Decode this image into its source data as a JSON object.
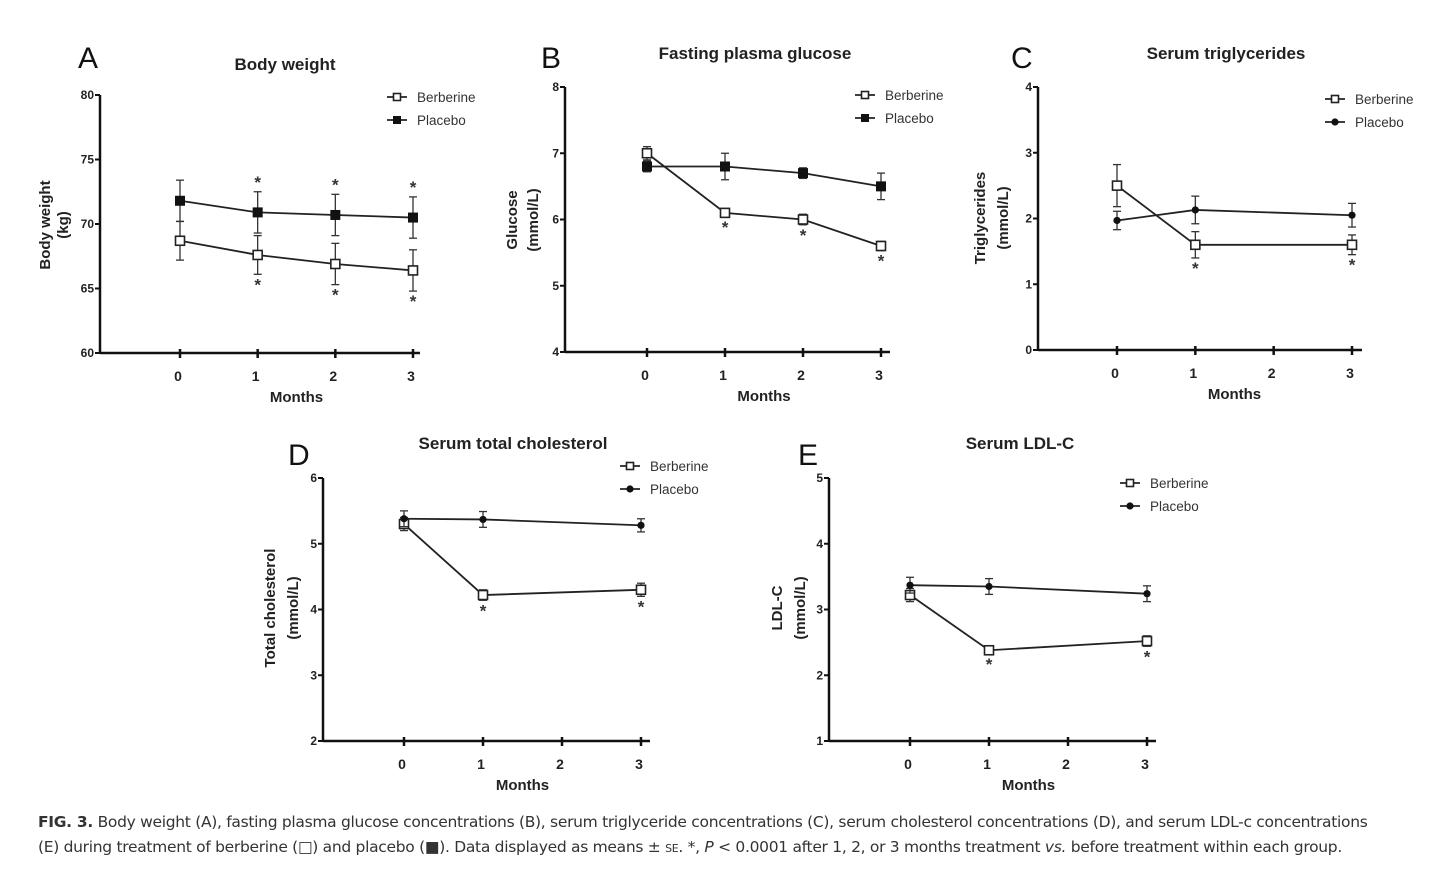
{
  "chart_data": [
    {
      "panel": "A",
      "type": "line",
      "title": "Body weight",
      "ylabel": [
        "Body weight",
        "(kg)"
      ],
      "xlabel": "Months",
      "ylim": [
        60,
        80
      ],
      "yticks": [
        "60",
        "65",
        "70",
        "75",
        "80"
      ],
      "x": [
        0,
        1,
        2,
        3
      ],
      "xticks": [
        "0",
        "1",
        "2",
        "3"
      ],
      "placebo_marker": "filled-square",
      "series": [
        {
          "name": "Berberine",
          "x": [
            0,
            1,
            2,
            3
          ],
          "values": [
            68.7,
            67.6,
            66.9,
            66.4
          ],
          "errors": [
            1.5,
            1.5,
            1.6,
            1.6
          ],
          "significant": [
            false,
            true,
            true,
            true
          ],
          "star_side": "below"
        },
        {
          "name": "Placebo",
          "x": [
            0,
            1,
            2,
            3
          ],
          "values": [
            71.8,
            70.9,
            70.7,
            70.5
          ],
          "errors": [
            1.6,
            1.6,
            1.6,
            1.6
          ],
          "significant": [
            false,
            true,
            true,
            true
          ],
          "star_side": "above"
        }
      ]
    },
    {
      "panel": "B",
      "type": "line",
      "title": "Fasting plasma glucose",
      "ylabel": [
        "Glucose",
        "(mmol/L)"
      ],
      "xlabel": "Months",
      "ylim": [
        4,
        8
      ],
      "yticks": [
        "4",
        "5",
        "6",
        "7",
        "8"
      ],
      "x": [
        0,
        1,
        2,
        3
      ],
      "xticks": [
        "0",
        "1",
        "2",
        "3"
      ],
      "placebo_marker": "filled-square",
      "series": [
        {
          "name": "Berberine",
          "x": [
            0,
            1,
            2,
            3
          ],
          "values": [
            7.0,
            6.1,
            6.0,
            5.6
          ],
          "errors": [
            0.1,
            0.06,
            0.08,
            0.07
          ],
          "significant": [
            false,
            true,
            true,
            true
          ],
          "star_side": "below"
        },
        {
          "name": "Placebo",
          "x": [
            0,
            1,
            2,
            3
          ],
          "values": [
            6.8,
            6.8,
            6.7,
            6.5
          ],
          "errors": [
            0.08,
            0.2,
            0.08,
            0.2
          ],
          "significant": [
            false,
            false,
            false,
            false
          ],
          "star_side": "above"
        }
      ]
    },
    {
      "panel": "C",
      "type": "line",
      "title": "Serum triglycerides",
      "ylabel": [
        "Triglycerides",
        "(mmol/L)"
      ],
      "xlabel": "Months",
      "ylim": [
        0,
        4
      ],
      "yticks": [
        "0",
        "1",
        "2",
        "3",
        "4"
      ],
      "x": [
        0,
        1,
        2,
        3
      ],
      "xticks": [
        "0",
        "1",
        "2",
        "3"
      ],
      "placebo_marker": "filled-circle",
      "series": [
        {
          "name": "Berberine",
          "x": [
            0,
            1,
            3
          ],
          "values": [
            2.5,
            1.6,
            1.6
          ],
          "errors": [
            0.32,
            0.2,
            0.15
          ],
          "significant": [
            false,
            true,
            true
          ],
          "star_side": "below"
        },
        {
          "name": "Placebo",
          "x": [
            0,
            1,
            3
          ],
          "values": [
            1.97,
            2.13,
            2.05
          ],
          "errors": [
            0.14,
            0.21,
            0.18
          ],
          "significant": [
            false,
            false,
            false
          ],
          "star_side": "above"
        }
      ]
    },
    {
      "panel": "D",
      "type": "line",
      "title": "Serum total cholesterol",
      "ylabel": [
        "Total cholesterol",
        "(mmol/L)"
      ],
      "xlabel": "Months",
      "ylim": [
        2,
        6
      ],
      "yticks": [
        "2",
        "3",
        "4",
        "5",
        "6"
      ],
      "x": [
        0,
        1,
        2,
        3
      ],
      "xticks": [
        "0",
        "1",
        "2",
        "3"
      ],
      "placebo_marker": "filled-circle",
      "series": [
        {
          "name": "Berberine",
          "x": [
            0,
            1,
            3
          ],
          "values": [
            5.3,
            4.22,
            4.3
          ],
          "errors": [
            0.1,
            0.08,
            0.1
          ],
          "significant": [
            false,
            true,
            true
          ],
          "star_side": "below"
        },
        {
          "name": "Placebo",
          "x": [
            0,
            1,
            3
          ],
          "values": [
            5.38,
            5.37,
            5.28
          ],
          "errors": [
            0.12,
            0.12,
            0.1
          ],
          "significant": [
            false,
            false,
            false
          ],
          "star_side": "above"
        }
      ]
    },
    {
      "panel": "E",
      "type": "line",
      "title": "Serum LDL-C",
      "ylabel": [
        "LDL-C",
        "(mmol/L)"
      ],
      "xlabel": "Months",
      "ylim": [
        1,
        5
      ],
      "yticks": [
        "1",
        "2",
        "3",
        "4",
        "5"
      ],
      "x": [
        0,
        1,
        2,
        3
      ],
      "xticks": [
        "0",
        "1",
        "2",
        "3"
      ],
      "placebo_marker": "filled-circle",
      "series": [
        {
          "name": "Berberine",
          "x": [
            0,
            1,
            3
          ],
          "values": [
            3.22,
            2.38,
            2.52
          ],
          "errors": [
            0.1,
            0.06,
            0.08
          ],
          "significant": [
            false,
            true,
            true
          ],
          "star_side": "below"
        },
        {
          "name": "Placebo",
          "x": [
            0,
            1,
            3
          ],
          "values": [
            3.37,
            3.35,
            3.24
          ],
          "errors": [
            0.12,
            0.12,
            0.12
          ],
          "significant": [
            false,
            false,
            false
          ],
          "star_side": "above"
        }
      ]
    }
  ],
  "star_symbol": "*",
  "caption": {
    "label": "FIG.  3.",
    "text1": " Body weight (A), fasting plasma glucose concentrations (B), serum triglyceride concentrations (C), serum cholesterol concentrations (D), and serum LDL-c concentrations (E) during treatment of berberine (",
    "open_square": "□",
    "text2": ") and placebo (",
    "filled_square": "■",
    "text3": "). Data displayed as means ± ",
    "se": "SE",
    "text4": ". *, ",
    "p": "P",
    "text5": " < 0.0001 after 1, 2, or 3 months treatment ",
    "vs": "vs.",
    "text6": " before treatment within each group."
  }
}
